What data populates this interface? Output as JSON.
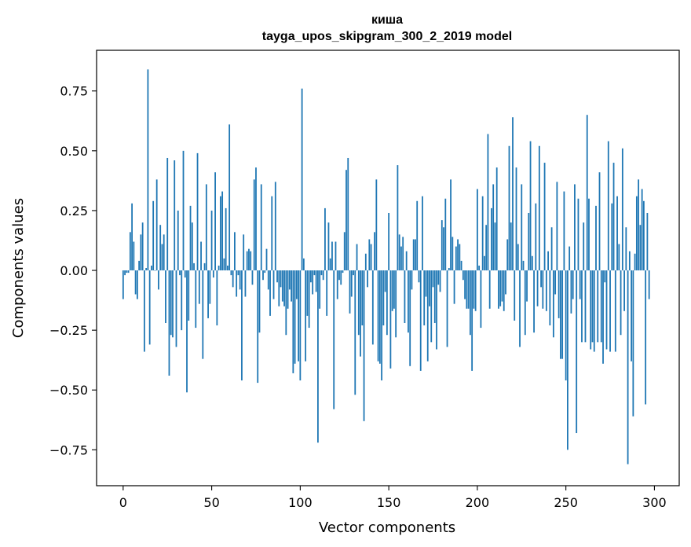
{
  "chart_data": {
    "type": "bar",
    "title_line1": "киша",
    "title_line2": "tayga_upos_skipgram_300_2_2019 model",
    "xlabel": "Vector components",
    "ylabel": "Components values",
    "xlim": [
      -15,
      314
    ],
    "ylim": [
      -0.9,
      0.92
    ],
    "xticks": [
      0,
      50,
      100,
      150,
      200,
      250,
      300
    ],
    "xtick_labels": [
      "0",
      "50",
      "100",
      "150",
      "200",
      "250",
      "300"
    ],
    "yticks": [
      -0.75,
      -0.5,
      -0.25,
      0.0,
      0.25,
      0.5,
      0.75
    ],
    "ytick_labels": [
      "−0.75",
      "−0.50",
      "−0.25",
      "0.00",
      "0.25",
      "0.50",
      "0.75"
    ],
    "bar_color": "#1f77b4",
    "grid": false,
    "values": [
      -0.12,
      -0.02,
      -0.01,
      -0.01,
      0.16,
      0.28,
      0.12,
      -0.1,
      -0.12,
      0.04,
      0.15,
      0.2,
      -0.34,
      0.01,
      0.84,
      -0.31,
      0.02,
      0.29,
      0.0,
      0.38,
      -0.08,
      0.19,
      0.11,
      0.15,
      -0.22,
      0.47,
      -0.44,
      -0.27,
      -0.28,
      0.46,
      -0.32,
      0.25,
      -0.02,
      -0.25,
      0.5,
      -0.03,
      -0.51,
      -0.21,
      0.27,
      0.2,
      0.03,
      -0.24,
      0.49,
      -0.14,
      0.12,
      -0.37,
      0.03,
      0.36,
      -0.2,
      -0.14,
      0.25,
      -0.03,
      0.41,
      -0.23,
      0.02,
      0.31,
      0.33,
      0.05,
      0.26,
      0.02,
      0.61,
      -0.02,
      -0.07,
      0.16,
      -0.11,
      -0.02,
      -0.08,
      -0.46,
      0.15,
      -0.11,
      0.08,
      0.09,
      0.08,
      -0.06,
      0.38,
      0.43,
      -0.47,
      -0.26,
      0.36,
      -0.04,
      -0.01,
      0.09,
      -0.08,
      -0.19,
      0.31,
      -0.12,
      0.37,
      -0.05,
      -0.15,
      -0.07,
      -0.13,
      -0.15,
      -0.27,
      -0.16,
      -0.08,
      -0.13,
      -0.43,
      -0.39,
      -0.12,
      -0.38,
      -0.46,
      0.76,
      0.05,
      -0.38,
      -0.19,
      -0.24,
      -0.05,
      -0.1,
      -0.02,
      -0.09,
      -0.72,
      -0.16,
      -0.02,
      -0.04,
      0.26,
      -0.19,
      0.2,
      0.05,
      0.12,
      -0.58,
      0.12,
      -0.12,
      -0.04,
      -0.06,
      -0.01,
      0.16,
      0.42,
      0.47,
      -0.18,
      -0.11,
      -0.02,
      -0.52,
      0.11,
      -0.27,
      -0.36,
      -0.23,
      -0.63,
      0.07,
      -0.07,
      0.13,
      0.11,
      -0.31,
      0.16,
      0.38,
      -0.38,
      -0.39,
      -0.46,
      -0.23,
      -0.09,
      -0.27,
      0.24,
      -0.41,
      -0.17,
      -0.16,
      -0.28,
      0.44,
      0.15,
      0.1,
      0.14,
      -0.22,
      0.08,
      -0.26,
      -0.4,
      -0.08,
      0.13,
      0.13,
      0.29,
      -0.05,
      -0.42,
      0.31,
      -0.23,
      -0.11,
      -0.38,
      -0.15,
      -0.3,
      -0.07,
      -0.22,
      -0.33,
      -0.06,
      -0.09,
      0.21,
      0.18,
      0.3,
      -0.32,
      0.01,
      0.38,
      0.14,
      -0.14,
      0.1,
      0.13,
      0.11,
      0.04,
      -0.04,
      -0.12,
      -0.16,
      -0.16,
      -0.27,
      -0.42,
      -0.16,
      -0.17,
      0.34,
      0.02,
      -0.24,
      0.31,
      0.06,
      0.19,
      0.57,
      -0.16,
      0.26,
      0.36,
      0.2,
      0.43,
      -0.16,
      -0.15,
      -0.13,
      -0.17,
      -0.1,
      0.13,
      0.52,
      0.2,
      0.64,
      -0.21,
      0.43,
      0.11,
      -0.32,
      0.36,
      0.04,
      -0.27,
      -0.13,
      0.24,
      0.54,
      0.06,
      -0.26,
      0.28,
      -0.15,
      0.52,
      -0.07,
      -0.16,
      0.45,
      -0.17,
      0.08,
      -0.23,
      0.18,
      -0.28,
      -0.1,
      0.37,
      -0.2,
      -0.37,
      -0.37,
      0.33,
      -0.46,
      -0.75,
      0.1,
      -0.18,
      -0.12,
      0.36,
      -0.68,
      0.3,
      -0.12,
      -0.3,
      0.2,
      -0.3,
      0.65,
      0.3,
      -0.33,
      -0.3,
      -0.34,
      0.27,
      -0.3,
      0.41,
      -0.3,
      -0.39,
      -0.05,
      -0.33,
      0.54,
      -0.34,
      0.28,
      0.45,
      -0.34,
      0.31,
      0.11,
      -0.27,
      0.51,
      -0.17,
      0.18,
      -0.81,
      0.08,
      -0.38,
      -0.61,
      0.07,
      0.31,
      0.38,
      0.19,
      0.34,
      0.29,
      -0.56,
      0.24,
      -0.12
    ]
  }
}
